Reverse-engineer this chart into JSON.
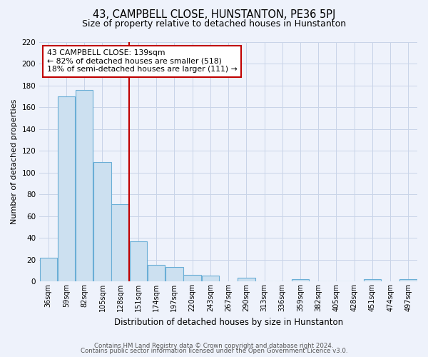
{
  "title": "43, CAMPBELL CLOSE, HUNSTANTON, PE36 5PJ",
  "subtitle": "Size of property relative to detached houses in Hunstanton",
  "xlabel": "Distribution of detached houses by size in Hunstanton",
  "ylabel": "Number of detached properties",
  "bar_labels": [
    "36sqm",
    "59sqm",
    "82sqm",
    "105sqm",
    "128sqm",
    "151sqm",
    "174sqm",
    "197sqm",
    "220sqm",
    "243sqm",
    "267sqm",
    "290sqm",
    "313sqm",
    "336sqm",
    "359sqm",
    "382sqm",
    "405sqm",
    "428sqm",
    "451sqm",
    "474sqm",
    "497sqm"
  ],
  "bar_values": [
    22,
    170,
    176,
    110,
    71,
    37,
    15,
    13,
    6,
    5,
    0,
    3,
    0,
    0,
    2,
    0,
    0,
    0,
    2,
    0,
    2
  ],
  "bar_color": "#cce0f0",
  "bar_edge_color": "#6aaed6",
  "bg_color": "#eef2fb",
  "plot_bg_color": "#eef2fb",
  "grid_color": "#c8d4e8",
  "annotation_text_line1": "43 CAMPBELL CLOSE: 139sqm",
  "annotation_text_line2": "← 82% of detached houses are smaller (518)",
  "annotation_text_line3": "18% of semi-detached houses are larger (111) →",
  "vline_color": "#c00000",
  "annotation_box_color": "#ffffff",
  "annotation_box_edge": "#c00000",
  "ylim": [
    0,
    220
  ],
  "yticks": [
    0,
    20,
    40,
    60,
    80,
    100,
    120,
    140,
    160,
    180,
    200,
    220
  ],
  "footer1": "Contains HM Land Registry data © Crown copyright and database right 2024.",
  "footer2": "Contains public sector information licensed under the Open Government Licence v3.0."
}
